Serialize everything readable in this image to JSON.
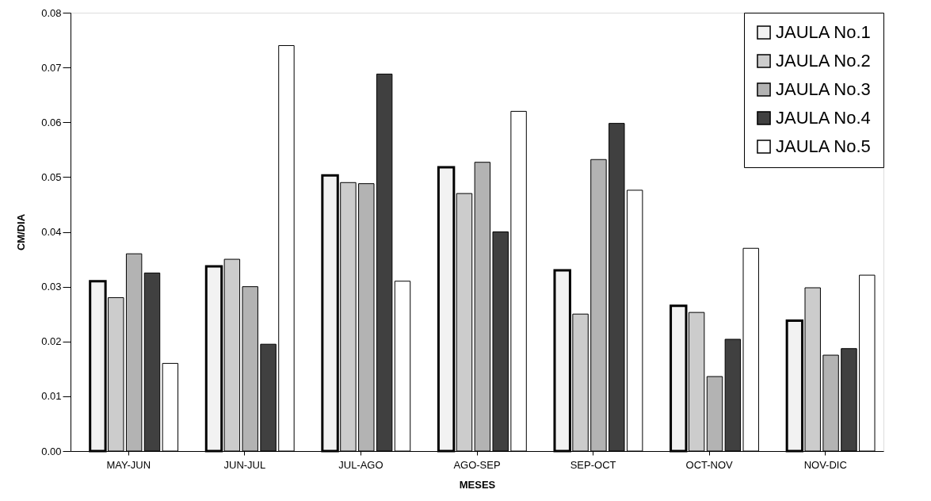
{
  "chart_data": {
    "type": "bar",
    "xlabel": "MESES",
    "ylabel": "CM/DIA",
    "categories": [
      "MAY-JUN",
      "JUN-JUL",
      "JUL-AGO",
      "AGO-SEP",
      "SEP-OCT",
      "OCT-NOV",
      "NOV-DIC"
    ],
    "series": [
      {
        "name": "JAULA No.1",
        "color": "#f2f2f2",
        "values": [
          0.031,
          0.0337,
          0.0503,
          0.0518,
          0.033,
          0.0265,
          0.0238
        ]
      },
      {
        "name": "JAULA No.2",
        "color": "#cccccc",
        "values": [
          0.028,
          0.035,
          0.049,
          0.047,
          0.025,
          0.0253,
          0.0298
        ]
      },
      {
        "name": "JAULA No.3",
        "color": "#b3b3b3",
        "values": [
          0.036,
          0.03,
          0.0488,
          0.0527,
          0.0532,
          0.0136,
          0.0175
        ]
      },
      {
        "name": "JAULA No.4",
        "color": "#404040",
        "values": [
          0.0325,
          0.0195,
          0.0688,
          0.04,
          0.0598,
          0.0204,
          0.0187
        ]
      },
      {
        "name": "JAULA No.5",
        "color": "#ffffff",
        "values": [
          0.016,
          0.074,
          0.031,
          0.062,
          0.0476,
          0.037,
          0.0321
        ]
      }
    ],
    "ylim": [
      0,
      0.08
    ],
    "yticks": [
      {
        "value": 0,
        "label": "0.00"
      },
      {
        "value": 0.01,
        "label": "0.01"
      },
      {
        "value": 0.02,
        "label": "0.02"
      },
      {
        "value": 0.03,
        "label": "0.03"
      },
      {
        "value": 0.04,
        "label": "0.04"
      },
      {
        "value": 0.05,
        "label": "0.05"
      },
      {
        "value": 0.06,
        "label": "0.06"
      },
      {
        "value": 0.07,
        "label": "0.07"
      },
      {
        "value": 0.08,
        "label": "0.08"
      }
    ],
    "grid": false,
    "legend": "top right"
  }
}
